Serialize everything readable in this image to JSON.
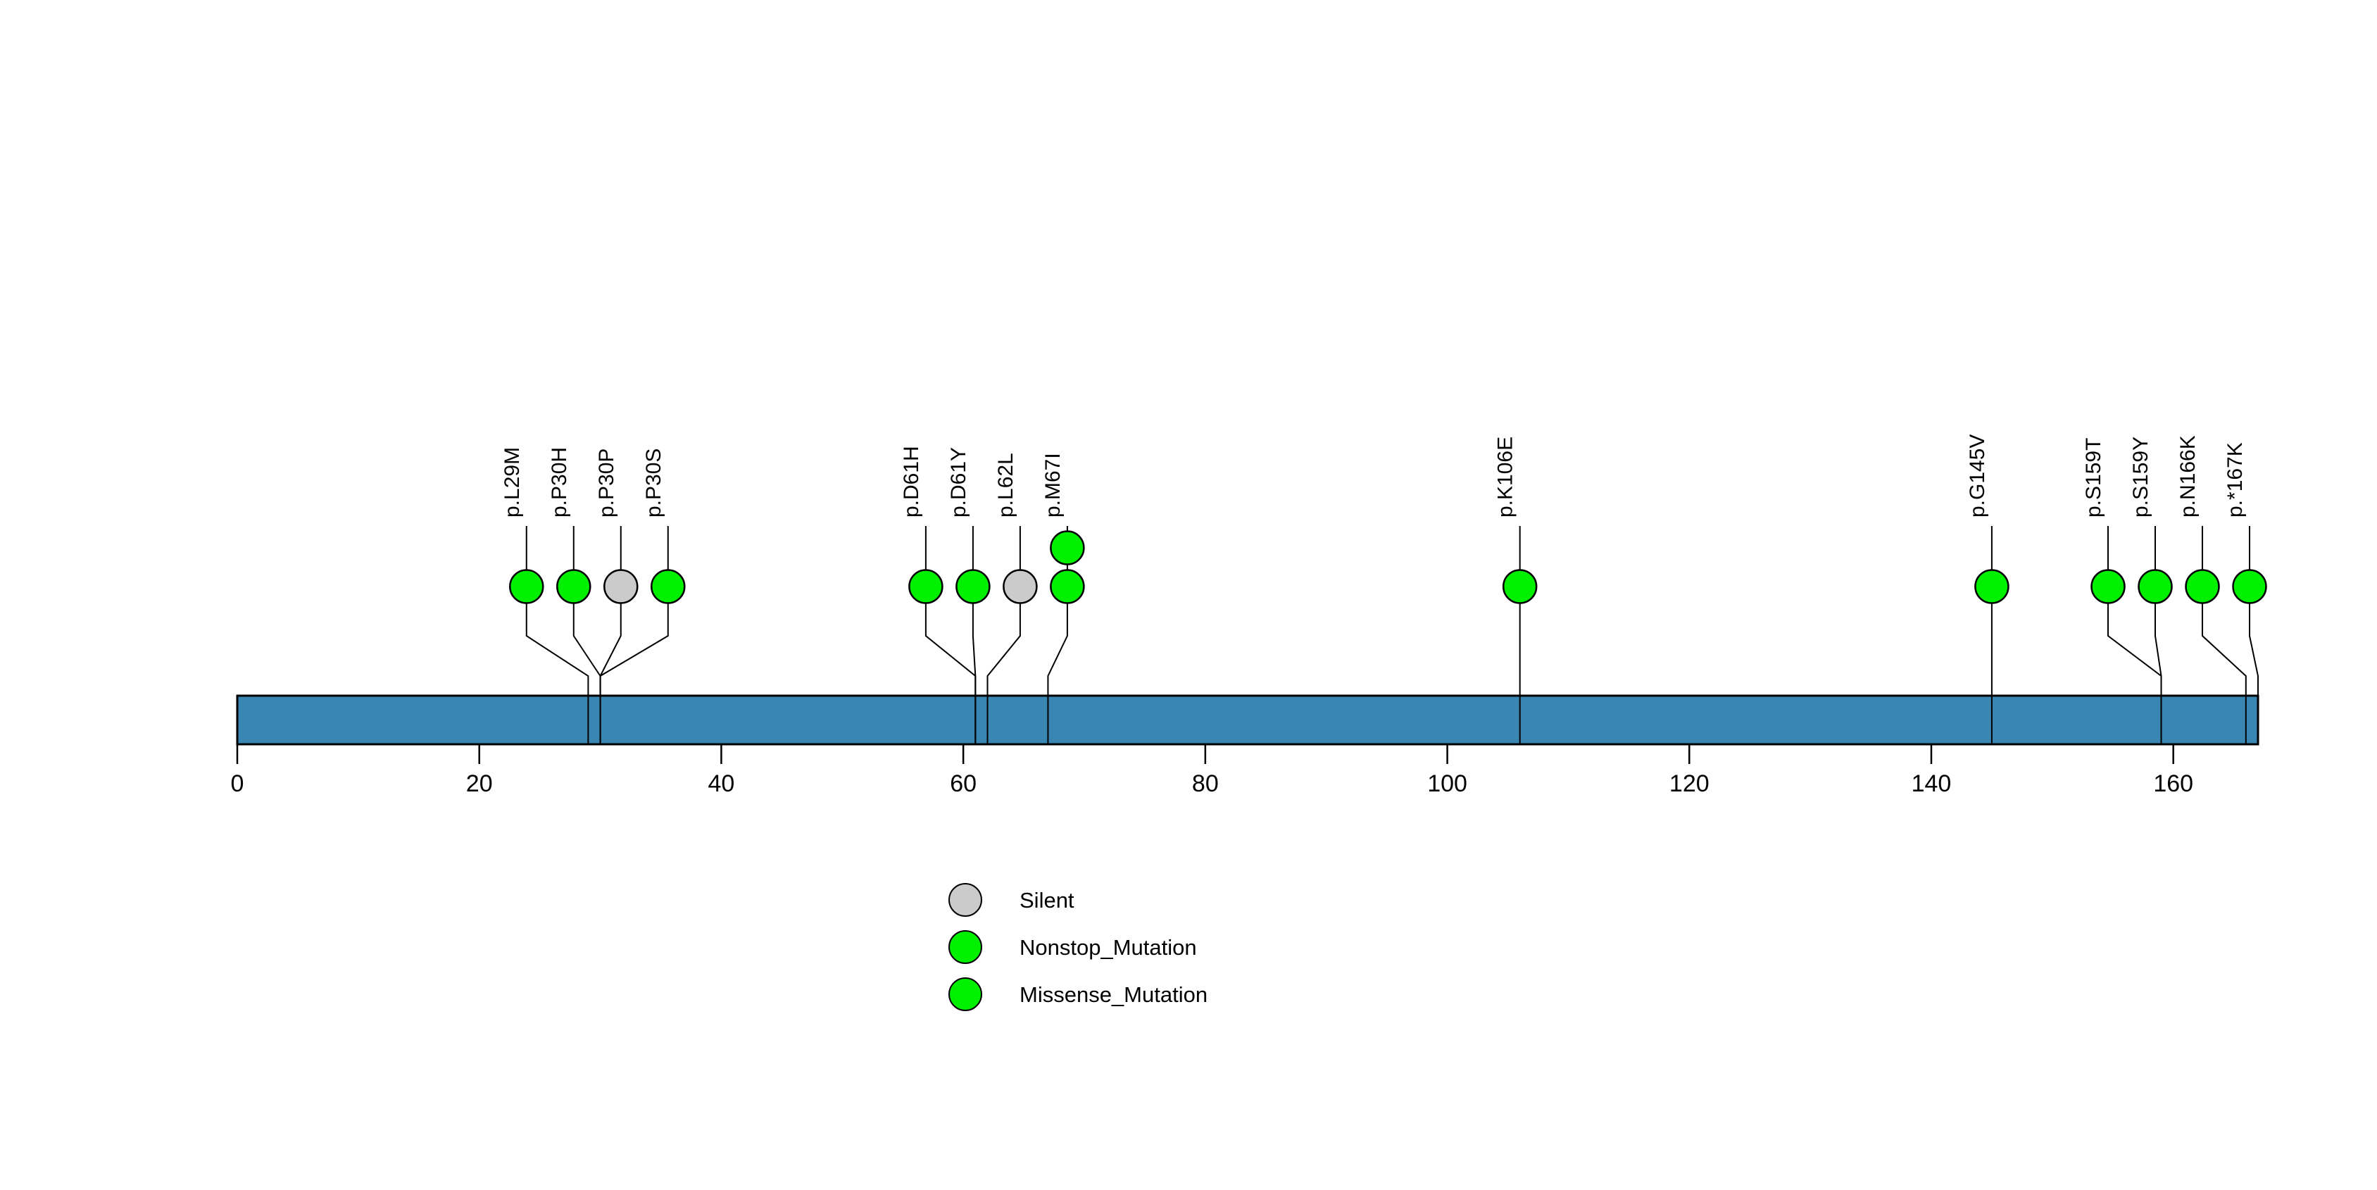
{
  "chart_data": {
    "type": "lollipop",
    "title": "",
    "xlabel": "",
    "ylabel": "",
    "xlim": [
      0,
      167
    ],
    "protein": {
      "ticks": [
        0,
        20,
        40,
        60,
        80,
        100,
        120,
        140,
        160
      ],
      "bar_color": "#3A86B3",
      "bar_border": "#000000"
    },
    "palette": {
      "Silent": "#CBCBCB",
      "Nonstop_Mutation": "#00F000",
      "Missense_Mutation": "#00F000"
    },
    "mutations": [
      {
        "label": "p.L29M",
        "pos": 29,
        "count": 1,
        "type": "Missense_Mutation"
      },
      {
        "label": "p.P30H",
        "pos": 30,
        "count": 1,
        "type": "Missense_Mutation"
      },
      {
        "label": "p.P30P",
        "pos": 30,
        "count": 1,
        "type": "Silent"
      },
      {
        "label": "p.P30S",
        "pos": 30,
        "count": 1,
        "type": "Missense_Mutation"
      },
      {
        "label": "p.D61H",
        "pos": 61,
        "count": 1,
        "type": "Missense_Mutation"
      },
      {
        "label": "p.D61Y",
        "pos": 61,
        "count": 1,
        "type": "Missense_Mutation"
      },
      {
        "label": "p.L62L",
        "pos": 62,
        "count": 1,
        "type": "Silent"
      },
      {
        "label": "p.M67I",
        "pos": 67,
        "count": 2,
        "type": "Missense_Mutation"
      },
      {
        "label": "p.K106E",
        "pos": 106,
        "count": 1,
        "type": "Missense_Mutation"
      },
      {
        "label": "p.G145V",
        "pos": 145,
        "count": 1,
        "type": "Missense_Mutation"
      },
      {
        "label": "p.S159T",
        "pos": 159,
        "count": 1,
        "type": "Missense_Mutation"
      },
      {
        "label": "p.S159Y",
        "pos": 159,
        "count": 1,
        "type": "Missense_Mutation"
      },
      {
        "label": "p.N166K",
        "pos": 166,
        "count": 1,
        "type": "Missense_Mutation"
      },
      {
        "label": "p.*167K",
        "pos": 167,
        "count": 1,
        "type": "Nonstop_Mutation"
      }
    ],
    "legend": [
      {
        "label": "Silent",
        "color": "#CBCBCB"
      },
      {
        "label": "Nonstop_Mutation",
        "color": "#00F000"
      },
      {
        "label": "Missense_Mutation",
        "color": "#00F000"
      }
    ],
    "legend_position": "bottom-center-left",
    "grid": false
  }
}
